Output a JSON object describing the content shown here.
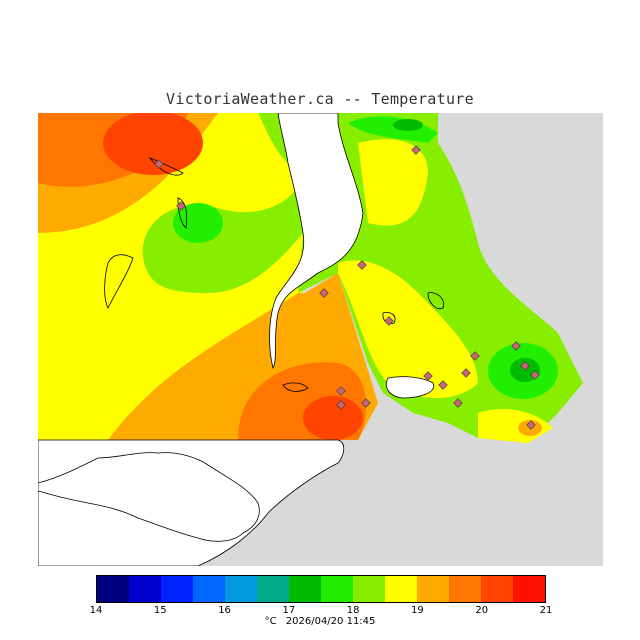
{
  "title": "VictoriaWeather.ca -- Temperature",
  "legend": {
    "ticks": [
      "14",
      "15",
      "16",
      "17",
      "18",
      "19",
      "20",
      "21"
    ],
    "colors": [
      "#00007f",
      "#0000cc",
      "#0022ff",
      "#0066ff",
      "#0099dd",
      "#00aa88",
      "#00bb00",
      "#22ee00",
      "#88ee00",
      "#ffff00",
      "#ffaa00",
      "#ff7700",
      "#ff4400",
      "#ff1100"
    ]
  },
  "footer": {
    "unit": "°C",
    "timestamp": "2026/04/20 11:45"
  },
  "colors": {
    "land_outside": "#d9d9d9",
    "water": "#ffffff",
    "station_marker": "#cc6677"
  }
}
